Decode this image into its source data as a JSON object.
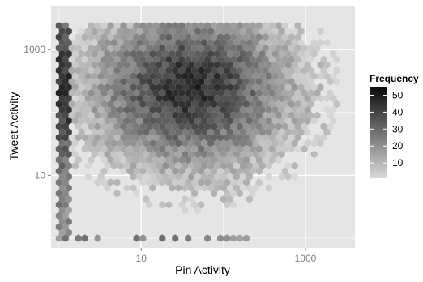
{
  "chart_data": {
    "type": "hexbin",
    "xlabel": "Pin Activity",
    "ylabel": "Tweet Activity",
    "x_scale": "log10",
    "y_scale": "log10",
    "xlim": [
      0.8,
      4000
    ],
    "ylim": [
      0.7,
      5000
    ],
    "x_ticks": [
      {
        "value": 10,
        "label": "10"
      },
      {
        "value": 1000,
        "label": "1000"
      }
    ],
    "y_ticks": [
      {
        "value": 10,
        "label": "10"
      },
      {
        "value": 1000,
        "label": "1000"
      }
    ],
    "grid": true,
    "background": "#e5e5e5",
    "legend": {
      "title": "Frequency",
      "position": "right",
      "breaks": [
        10,
        20,
        30,
        40,
        50
      ],
      "range": [
        1,
        55
      ],
      "color_low": "#d9d9d9",
      "color_high": "#0a0a0a"
    },
    "density_model": {
      "peak_pin": 40,
      "peak_tweet": 250,
      "peak_frequency": 45,
      "x_extent": [
        1,
        2500
      ],
      "y_extent": [
        1,
        2500
      ]
    }
  }
}
